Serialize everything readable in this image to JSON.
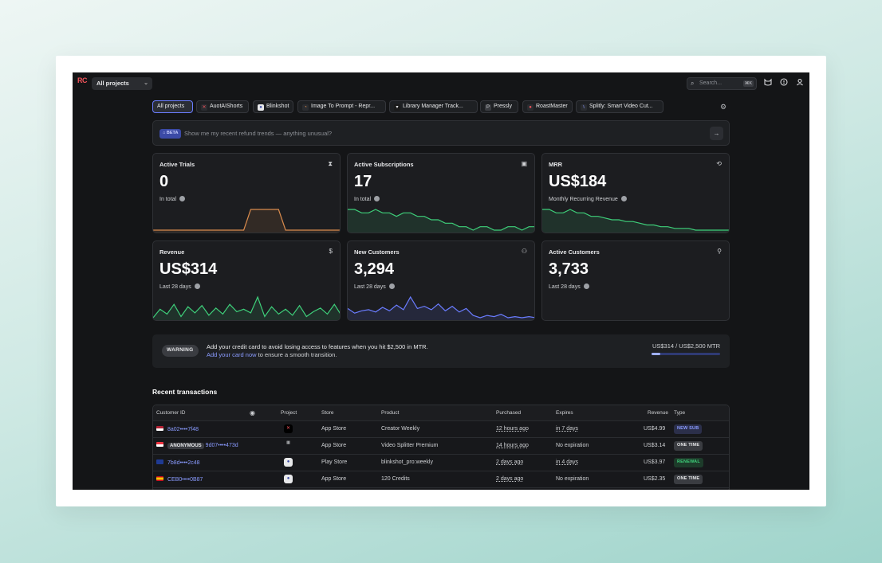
{
  "app": {
    "logo_text": "RC",
    "project_select": "All projects",
    "search_placeholder": "Search...",
    "search_shortcut": "⌘K",
    "icons": [
      "cat-icon",
      "help-icon",
      "user-icon"
    ]
  },
  "chips": [
    {
      "label": "All projects",
      "icon": ""
    },
    {
      "label": "AuotAIShorts",
      "icon": "autoaishorts-icon"
    },
    {
      "label": "Blinkshot",
      "icon": "blinkshot-icon"
    },
    {
      "label": "Image To Prompt - Repr...",
      "icon": "image-to-prompt-icon"
    },
    {
      "label": "Library Manager Track...",
      "icon": "library-manager-icon"
    },
    {
      "label": "Pressly",
      "icon": "pressly-icon"
    },
    {
      "label": "RoastMaster",
      "icon": "roastmaster-icon"
    },
    {
      "label": "Splitly: Smart Video Cut...",
      "icon": "splitly-icon"
    }
  ],
  "ask": {
    "badge": "BETA",
    "placeholder": "Show me my recent refund trends — anything unusual?"
  },
  "cards": [
    {
      "title": "Active Trials",
      "value": "0",
      "sub": "In total",
      "icon": "hourglass-icon",
      "line_color": "#d98b4d"
    },
    {
      "title": "Active Subscriptions",
      "value": "17",
      "sub": "In total",
      "icon": "calendar-icon",
      "line_color": "#3ecf7a"
    },
    {
      "title": "MRR",
      "value": "US$184",
      "sub": "Monthly Recurring Revenue",
      "icon": "refresh-icon",
      "line_color": "#3ecf7a"
    },
    {
      "title": "Revenue",
      "value": "US$314",
      "sub": "Last 28 days",
      "icon": "dollar-icon",
      "line_color": "#3ecf7a"
    },
    {
      "title": "New Customers",
      "value": "3,294",
      "sub": "Last 28 days",
      "icon": "user-plus-icon",
      "line_color": "#6a7cff"
    },
    {
      "title": "Active Customers",
      "value": "3,733",
      "sub": "Last 28 days",
      "icon": "user-icon",
      "line_color": ""
    }
  ],
  "sparklines": {
    "active_trials": [
      0,
      0,
      0,
      0,
      0,
      0,
      0,
      0,
      0,
      0,
      0,
      0,
      0,
      0,
      1,
      1,
      1,
      1,
      1,
      0,
      0,
      0,
      0,
      0,
      0,
      0,
      0,
      0
    ],
    "active_subscriptions": [
      17,
      17,
      16,
      16,
      17,
      16,
      16,
      15,
      16,
      16,
      15,
      15,
      14,
      14,
      13,
      13,
      12,
      12,
      11,
      12,
      12,
      11,
      11,
      12,
      12,
      11,
      12,
      12
    ],
    "mrr": [
      184,
      184,
      180,
      180,
      184,
      180,
      180,
      176,
      176,
      174,
      172,
      172,
      170,
      170,
      168,
      166,
      166,
      164,
      164,
      162,
      162,
      162,
      160,
      160,
      160,
      160,
      160,
      160
    ],
    "revenue": [
      5,
      12,
      8,
      16,
      6,
      14,
      9,
      15,
      7,
      13,
      8,
      16,
      10,
      12,
      9,
      22,
      6,
      14,
      8,
      12,
      7,
      15,
      6,
      10,
      13,
      8,
      16,
      7
    ],
    "new_customers": [
      120,
      80,
      100,
      110,
      90,
      130,
      100,
      150,
      110,
      220,
      120,
      140,
      110,
      160,
      100,
      140,
      90,
      120,
      60,
      40,
      60,
      50,
      70,
      40,
      50,
      40,
      50,
      40
    ]
  },
  "warning": {
    "badge": "WARNING",
    "line1": "Add your credit card to avoid losing access to features when you hit $2,500 in MTR.",
    "link": "Add your card now",
    "line2_rest": " to ensure a smooth transition.",
    "mtr_label": "US$314 / US$2,500 MTR",
    "mtr_fraction": 0.1256
  },
  "transactions": {
    "title": "Recent transactions",
    "columns": [
      "Customer ID",
      "Project",
      "Store",
      "Product",
      "Purchased",
      "Expires",
      "Revenue",
      "Type"
    ],
    "rows": [
      {
        "flag": "us",
        "anon": "",
        "customer_id": "8a02••••7f48",
        "project_icon": "splitly-icon",
        "store": "App Store",
        "product": "Creator Weekly",
        "purchased": "12 hours ago",
        "expires": "in 7 days",
        "revenue": "US$4.99",
        "type": "NEW SUB",
        "type_color": "#6a7cff"
      },
      {
        "flag": "sg",
        "anon": "ANONYMOUS",
        "customer_id": "9d07••••473d",
        "project_icon": "pressly-icon",
        "store": "App Store",
        "product": "Video Splitter Premium",
        "purchased": "14 hours ago",
        "expires": "No expiration",
        "revenue": "US$3.14",
        "type": "ONE TIME",
        "type_color": "#cfd1d4"
      },
      {
        "flag": "au",
        "anon": "",
        "customer_id": "7b8d••••2c48",
        "project_icon": "blinkshot-icon",
        "store": "Play Store",
        "product": "blinkshot_pro:weekly",
        "purchased": "2 days ago",
        "expires": "in 4 days",
        "revenue": "US$3.97",
        "type": "RENEWAL",
        "type_color": "#3ecf7a"
      },
      {
        "flag": "es",
        "anon": "",
        "customer_id": "CEB0••••0B87",
        "project_icon": "blinkshot-icon",
        "store": "App Store",
        "product": "120 Credits",
        "purchased": "2 days ago",
        "expires": "No expiration",
        "revenue": "US$2.35",
        "type": "ONE TIME",
        "type_color": "#cfd1d4"
      }
    ]
  },
  "colors": {
    "accent": "#6a7cff",
    "green": "#3ecf7a",
    "orange": "#d98b4d",
    "bg": "#141517",
    "card": "#1c1d20"
  }
}
